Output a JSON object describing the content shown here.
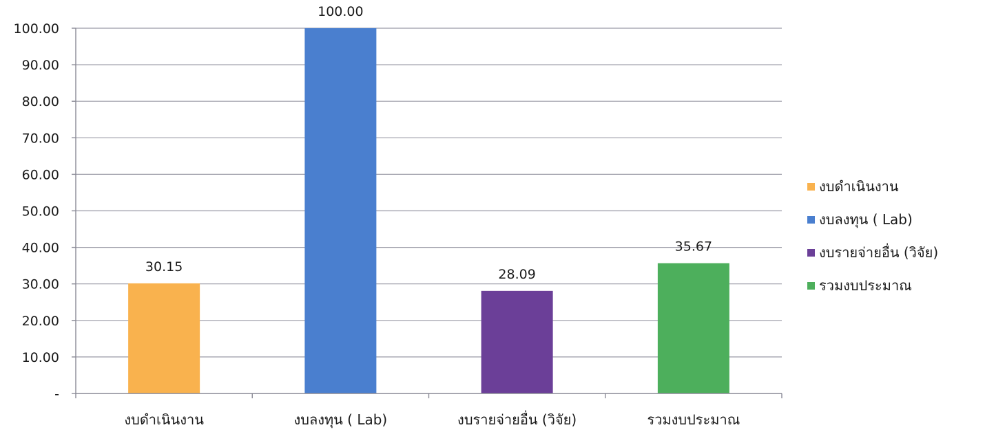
{
  "chart_data": {
    "type": "bar",
    "title": "",
    "xlabel": "",
    "ylabel": "",
    "ylim": [
      0,
      100
    ],
    "yticks": [
      0,
      10,
      20,
      30,
      40,
      50,
      60,
      70,
      80,
      90,
      100
    ],
    "ytick_labels": [
      "-",
      "10.00",
      "20.00",
      "30.00",
      "40.00",
      "50.00",
      "60.00",
      "70.00",
      "80.00",
      "90.00",
      "100.00"
    ],
    "categories": [
      "งบดำเนินงาน",
      "งบลงทุน ( Lab)",
      "งบรายจ่ายอื่น (วิจัย)",
      "รวมงบประมาณ"
    ],
    "values": [
      30.15,
      100.0,
      28.09,
      35.67
    ],
    "value_labels": [
      "30.15",
      "100.00",
      "28.09",
      "35.67"
    ],
    "colors": [
      "#f9b24e",
      "#4a7fcf",
      "#6b3f98",
      "#4daf5c"
    ],
    "grid": true,
    "legend_position": "right",
    "legend": [
      {
        "label": "งบดำเนินงาน",
        "color": "#f9b24e"
      },
      {
        "label": "งบลงทุน ( Lab)",
        "color": "#4a7fcf"
      },
      {
        "label": "งบรายจ่ายอื่น (วิจัย)",
        "color": "#6b3f98"
      },
      {
        "label": "รวมงบประมาณ",
        "color": "#4daf5c"
      }
    ]
  }
}
